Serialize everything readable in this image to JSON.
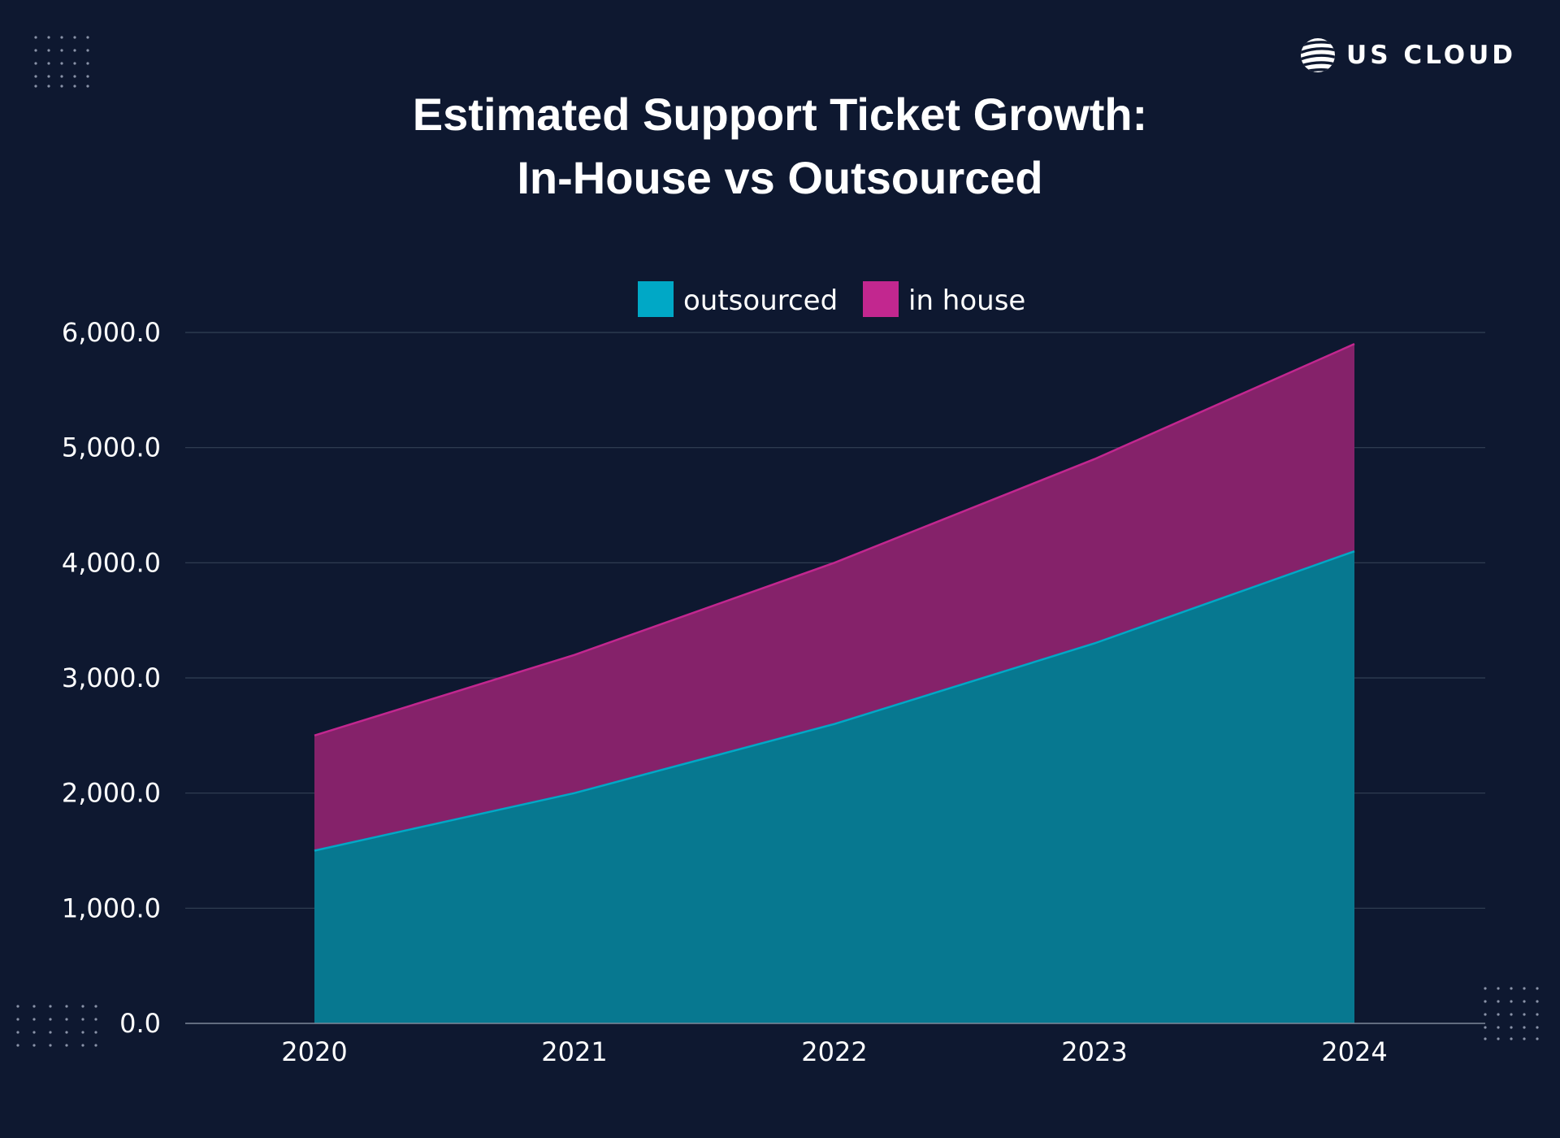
{
  "brand": {
    "name": "US CLOUD",
    "logo_icon": "globe-icon"
  },
  "colors": {
    "background": "#0e1830",
    "outsourced": "#00a8c6",
    "outsourced_fill": "#077890",
    "in_house": "#c2278f",
    "in_house_fill": "#85226a",
    "grid": "#334055"
  },
  "chart_data": {
    "type": "area",
    "stacked": true,
    "title_lines": [
      "Estimated Support Ticket Growth:",
      "In-House vs Outsourced"
    ],
    "categories": [
      "2020",
      "2021",
      "2022",
      "2023",
      "2024"
    ],
    "series": [
      {
        "name": "outsourced",
        "values": [
          1500,
          2000,
          2600,
          3300,
          4100
        ]
      },
      {
        "name": "in house",
        "values": [
          1000,
          1200,
          1400,
          1600,
          1800
        ]
      }
    ],
    "ylim": [
      0,
      6000
    ],
    "yticks": [
      0,
      1000,
      2000,
      3000,
      4000,
      5000,
      6000
    ],
    "ytick_labels": [
      "0.0",
      "1,000.0",
      "2,000.0",
      "3,000.0",
      "4,000.0",
      "5,000.0",
      "6,000.0"
    ],
    "grid": true,
    "legend_position": "top-center",
    "xlabel": "",
    "ylabel": ""
  }
}
